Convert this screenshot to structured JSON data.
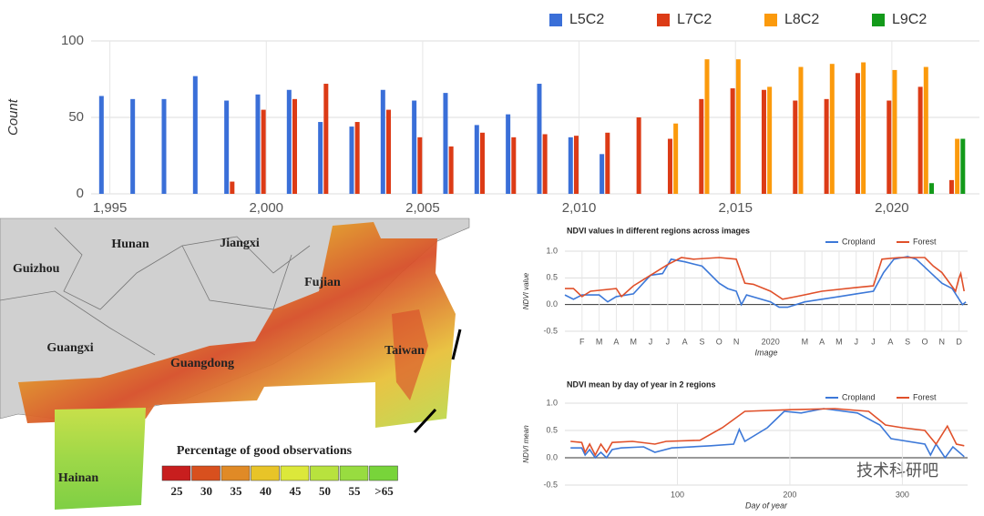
{
  "chart_data": [
    {
      "type": "bar",
      "ylabel": "Count",
      "legend": "top-right",
      "grid": true,
      "x": [
        1995,
        1996,
        1997,
        1998,
        1999,
        2000,
        2001,
        2002,
        2003,
        2004,
        2005,
        2006,
        2007,
        2008,
        2009,
        2010,
        2011,
        2012,
        2013,
        2014,
        2015,
        2016,
        2017,
        2018,
        2019,
        2020,
        2021,
        2022
      ],
      "xlim": [
        1994.4,
        2022.8
      ],
      "xticks": [
        {
          "value": 1995,
          "label": "1,995"
        },
        {
          "value": 2000,
          "label": "2,000"
        },
        {
          "value": 2005,
          "label": "2,005"
        },
        {
          "value": 2010,
          "label": "2,010"
        },
        {
          "value": 2015,
          "label": "2,015"
        },
        {
          "value": 2020,
          "label": "2,020"
        }
      ],
      "ylim": [
        0,
        100
      ],
      "yticks": [
        0,
        50,
        100
      ],
      "series": [
        {
          "name": "L5C2",
          "color": "#3a6fd8",
          "values": [
            64,
            62,
            62,
            77,
            61,
            65,
            68,
            47,
            44,
            68,
            61,
            66,
            45,
            52,
            72,
            37,
            26,
            null,
            null,
            null,
            null,
            null,
            null,
            null,
            null,
            null,
            null,
            null
          ]
        },
        {
          "name": "L7C2",
          "color": "#dc3b16",
          "values": [
            null,
            null,
            null,
            null,
            8,
            55,
            62,
            72,
            47,
            55,
            37,
            31,
            40,
            37,
            39,
            38,
            40,
            50,
            36,
            62,
            69,
            68,
            61,
            62,
            79,
            61,
            70,
            9
          ]
        },
        {
          "name": "L8C2",
          "color": "#fb9a0c",
          "values": [
            null,
            null,
            null,
            null,
            null,
            null,
            null,
            null,
            null,
            null,
            null,
            null,
            null,
            null,
            null,
            null,
            null,
            null,
            46,
            88,
            88,
            70,
            83,
            85,
            86,
            81,
            83,
            36
          ]
        },
        {
          "name": "L9C2",
          "color": "#139a1a",
          "values": [
            null,
            null,
            null,
            null,
            null,
            null,
            null,
            null,
            null,
            null,
            null,
            null,
            null,
            null,
            null,
            null,
            null,
            null,
            null,
            null,
            null,
            null,
            null,
            null,
            null,
            null,
            7,
            36
          ]
        }
      ]
    },
    {
      "type": "line",
      "title": "NDVI values in different regions across images",
      "xlabel": "Image",
      "ylabel": "NDVI value",
      "legend": "top-right",
      "grid": true,
      "xlim": [
        0,
        23.5
      ],
      "xticks": [
        {
          "value": 1,
          "label": "F"
        },
        {
          "value": 2,
          "label": "M"
        },
        {
          "value": 3,
          "label": "A"
        },
        {
          "value": 4,
          "label": "M"
        },
        {
          "value": 5,
          "label": "J"
        },
        {
          "value": 6,
          "label": "J"
        },
        {
          "value": 7,
          "label": "A"
        },
        {
          "value": 8,
          "label": "S"
        },
        {
          "value": 9,
          "label": "O"
        },
        {
          "value": 10,
          "label": "N"
        },
        {
          "value": 12,
          "label": "2020"
        },
        {
          "value": 14,
          "label": "M"
        },
        {
          "value": 15,
          "label": "A"
        },
        {
          "value": 16,
          "label": "M"
        },
        {
          "value": 17,
          "label": "J"
        },
        {
          "value": 18,
          "label": "J"
        },
        {
          "value": 19,
          "label": "A"
        },
        {
          "value": 20,
          "label": "S"
        },
        {
          "value": 21,
          "label": "O"
        },
        {
          "value": 22,
          "label": "N"
        },
        {
          "value": 23,
          "label": "D"
        }
      ],
      "ylim": [
        -0.5,
        1
      ],
      "yticks": [
        -0.5,
        {
          "value": 0,
          "label": "0.0"
        },
        0.5,
        {
          "value": 1,
          "label": "1.0"
        }
      ],
      "series": [
        {
          "name": "Cropland",
          "color": "#3c78d8",
          "x": [
            0,
            0.5,
            1,
            2,
            2.5,
            3,
            4,
            5,
            5.7,
            6.2,
            7,
            8,
            9,
            9.5,
            10,
            10.3,
            10.6,
            12,
            12.5,
            13,
            14,
            15,
            16,
            17,
            18,
            18.6,
            19.2,
            20,
            20.5,
            21,
            22,
            22.6,
            23,
            23.2,
            23.4
          ],
          "values": [
            0.18,
            0.1,
            0.18,
            0.18,
            0.05,
            0.15,
            0.2,
            0.55,
            0.58,
            0.85,
            0.8,
            0.72,
            0.4,
            0.3,
            0.25,
            0,
            0.18,
            0.05,
            -0.05,
            -0.05,
            0.05,
            0.1,
            0.15,
            0.2,
            0.25,
            0.6,
            0.85,
            0.9,
            0.85,
            0.7,
            0.4,
            0.3,
            0.1,
            0,
            0.05
          ]
        },
        {
          "name": "Forest",
          "color": "#e0502a",
          "x": [
            0,
            0.5,
            1,
            1.5,
            3,
            3.3,
            4,
            5,
            6,
            6.8,
            7.5,
            9,
            10,
            10.5,
            11,
            12,
            12.7,
            13.5,
            15,
            17,
            18,
            18.5,
            19.5,
            21,
            21.5,
            22,
            22.8,
            23,
            23.1,
            23.3
          ],
          "values": [
            0.3,
            0.3,
            0.15,
            0.25,
            0.3,
            0.15,
            0.35,
            0.55,
            0.75,
            0.88,
            0.85,
            0.88,
            0.85,
            0.4,
            0.38,
            0.25,
            0.1,
            0.15,
            0.25,
            0.32,
            0.35,
            0.85,
            0.88,
            0.88,
            0.72,
            0.6,
            0.25,
            0.5,
            0.58,
            0.25
          ]
        }
      ]
    },
    {
      "type": "line",
      "title": "NDVI mean by day of year in 2 regions",
      "xlabel": "Day of year",
      "ylabel": "NDVI mean",
      "legend": "top-right",
      "grid": true,
      "xlim": [
        0,
        358
      ],
      "xticks": [
        100,
        200,
        300
      ],
      "ylim": [
        -0.5,
        1
      ],
      "yticks": [
        -0.5,
        {
          "value": 0,
          "label": "0.0"
        },
        0.5,
        {
          "value": 1,
          "label": "1.0"
        }
      ],
      "series": [
        {
          "name": "Cropland",
          "color": "#3c78d8",
          "x": [
            5,
            15,
            18,
            22,
            27,
            32,
            37,
            42,
            50,
            70,
            80,
            95,
            130,
            150,
            155,
            160,
            180,
            195,
            210,
            230,
            260,
            280,
            290,
            320,
            325,
            330,
            338,
            345,
            355
          ],
          "values": [
            0.18,
            0.18,
            0.05,
            0.15,
            0,
            0.1,
            0,
            0.15,
            0.18,
            0.2,
            0.1,
            0.18,
            0.22,
            0.25,
            0.52,
            0.3,
            0.55,
            0.85,
            0.82,
            0.9,
            0.82,
            0.6,
            0.35,
            0.25,
            0.05,
            0.25,
            0,
            0.2,
            0.02
          ]
        },
        {
          "name": "Forest",
          "color": "#e0502a",
          "x": [
            5,
            15,
            18,
            22,
            27,
            32,
            37,
            42,
            60,
            80,
            90,
            120,
            140,
            160,
            200,
            240,
            270,
            285,
            300,
            320,
            330,
            340,
            348,
            355
          ],
          "values": [
            0.3,
            0.28,
            0.1,
            0.25,
            0.05,
            0.25,
            0.1,
            0.28,
            0.3,
            0.25,
            0.3,
            0.32,
            0.55,
            0.85,
            0.88,
            0.9,
            0.85,
            0.6,
            0.55,
            0.5,
            0.25,
            0.58,
            0.25,
            0.22
          ]
        }
      ]
    }
  ],
  "map": {
    "provinces": [
      "Hunan",
      "Jiangxi",
      "Guizhou",
      "Fujian",
      "Guangxi",
      "Guangdong",
      "Taiwan",
      "Hainan"
    ],
    "legend": {
      "title": "Percentage of good observations",
      "labels": [
        "25",
        "30",
        "35",
        "40",
        "45",
        "50",
        "55",
        ">65"
      ]
    }
  },
  "watermark": "技术科研吧"
}
